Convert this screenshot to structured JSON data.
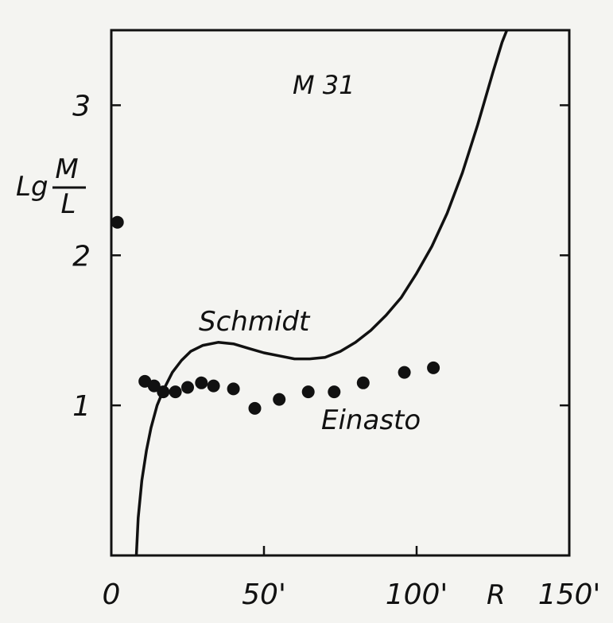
{
  "chart_data": {
    "type": "scatter",
    "title": "M 31",
    "xlabel": "R",
    "ylabel_main": "Lg",
    "ylabel_numerator": "M",
    "ylabel_denominator": "L",
    "xlim": [
      0,
      150
    ],
    "ylim": [
      0,
      3.5
    ],
    "x_ticks": [
      {
        "value": 0,
        "label": "0"
      },
      {
        "value": 50,
        "label": "50'"
      },
      {
        "value": 100,
        "label": "100'"
      },
      {
        "value": 150,
        "label": "150'"
      }
    ],
    "y_ticks": [
      {
        "value": 1,
        "label": "1"
      },
      {
        "value": 2,
        "label": "2"
      },
      {
        "value": 3,
        "label": "3"
      }
    ],
    "series": [
      {
        "name": "Schmidt",
        "kind": "line",
        "color": "#111111",
        "x": [
          8.2,
          8.8,
          10,
          11.5,
          13,
          15,
          17,
          20,
          23,
          26,
          30,
          35,
          40,
          45,
          50,
          55,
          60,
          65,
          70,
          75,
          80,
          85,
          90,
          95,
          100,
          105,
          110,
          115,
          120,
          125,
          128,
          131.5
        ],
        "y": [
          0.0,
          0.25,
          0.5,
          0.7,
          0.85,
          1.0,
          1.1,
          1.22,
          1.3,
          1.36,
          1.4,
          1.42,
          1.41,
          1.38,
          1.35,
          1.33,
          1.31,
          1.31,
          1.32,
          1.36,
          1.42,
          1.5,
          1.6,
          1.72,
          1.88,
          2.06,
          2.28,
          2.55,
          2.87,
          3.22,
          3.42,
          3.6
        ]
      },
      {
        "name": "Einasto",
        "kind": "scatter",
        "color": "#111111",
        "x": [
          2,
          11,
          14,
          17,
          21,
          25,
          29.5,
          33.5,
          40,
          47,
          55,
          64.5,
          73,
          82.5,
          96,
          105.5
        ],
        "y": [
          2.22,
          1.16,
          1.13,
          1.09,
          1.09,
          1.12,
          1.15,
          1.13,
          1.11,
          0.98,
          1.04,
          1.09,
          1.09,
          1.15,
          1.22,
          1.25
        ]
      }
    ]
  }
}
